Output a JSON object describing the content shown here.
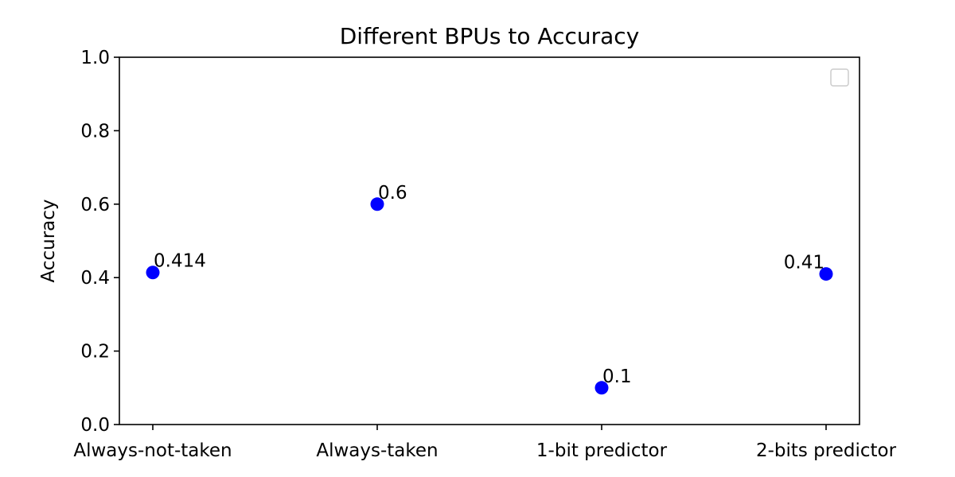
{
  "chart_data": {
    "type": "scatter",
    "title": "Different BPUs to Accuracy",
    "xlabel": "",
    "ylabel": "Accuracy",
    "categories": [
      "Always-not-taken",
      "Always-taken",
      "1-bit predictor",
      "2-bits predictor"
    ],
    "values": [
      0.414,
      0.6,
      0.1,
      0.41
    ],
    "data_labels": [
      "0.414",
      "0.6",
      "0.1",
      "0.41"
    ],
    "ylim": [
      0.0,
      1.0
    ],
    "yticks": [
      "0.0",
      "0.2",
      "0.4",
      "0.6",
      "0.8",
      "1.0"
    ],
    "ytick_values": [
      0.0,
      0.2,
      0.4,
      0.6,
      0.8,
      1.0
    ],
    "grid": false,
    "legend": {
      "placement": "top-right",
      "entries": []
    },
    "marker_color": "#0000ff"
  }
}
